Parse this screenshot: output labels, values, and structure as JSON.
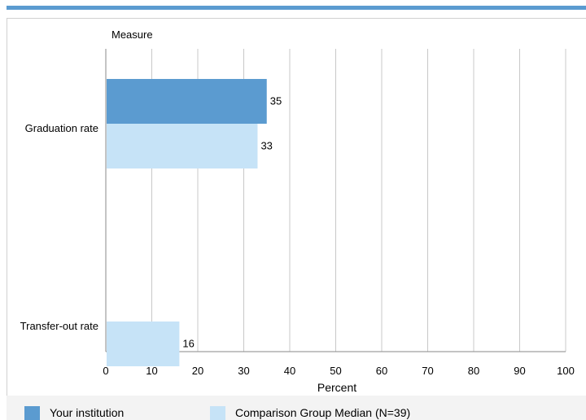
{
  "chart_data": {
    "type": "bar",
    "orientation": "horizontal",
    "categories": [
      "Graduation rate",
      "Transfer-out rate"
    ],
    "series": [
      {
        "name": "Your institution",
        "values": [
          35,
          null
        ],
        "color": "#5b9bd0"
      },
      {
        "name": "Comparison Group Median (N=39)",
        "values": [
          33,
          16
        ],
        "color": "#c6e3f7"
      }
    ],
    "data_labels": [
      [
        "35",
        ""
      ],
      [
        "33",
        "16"
      ]
    ],
    "ylabel": "Measure",
    "xlabel": "Percent",
    "xlim": [
      0,
      100
    ],
    "xticks": [
      0,
      10,
      20,
      30,
      40,
      50,
      60,
      70,
      80,
      90,
      100
    ],
    "grid": true,
    "legend_position": "bottom"
  }
}
